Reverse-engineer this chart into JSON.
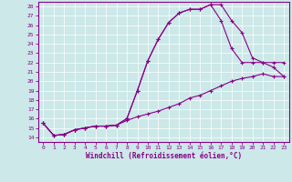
{
  "xlabel": "Windchill (Refroidissement éolien,°C)",
  "bg_color": "#cce8e8",
  "line_color": "#880088",
  "grid_color": "#aad0d0",
  "xlim": [
    -0.5,
    23.5
  ],
  "ylim": [
    13.5,
    28.5
  ],
  "yticks": [
    14,
    15,
    16,
    17,
    18,
    19,
    20,
    21,
    22,
    23,
    24,
    25,
    26,
    27,
    28
  ],
  "xticks": [
    0,
    1,
    2,
    3,
    4,
    5,
    6,
    7,
    8,
    9,
    10,
    11,
    12,
    13,
    14,
    15,
    16,
    17,
    18,
    19,
    20,
    21,
    22,
    23
  ],
  "line1_x": [
    0,
    1,
    2,
    3,
    4,
    5,
    6,
    7,
    8,
    9,
    10,
    11,
    12,
    13,
    14,
    15,
    16,
    17,
    18,
    19,
    20,
    21,
    22,
    23
  ],
  "line1_y": [
    15.5,
    14.2,
    14.3,
    14.8,
    15.0,
    15.2,
    15.2,
    15.3,
    16.0,
    19.0,
    22.2,
    24.5,
    26.3,
    27.3,
    27.7,
    27.7,
    28.2,
    28.2,
    26.5,
    25.2,
    22.5,
    22.0,
    21.5,
    20.5
  ],
  "line2_x": [
    0,
    1,
    2,
    3,
    4,
    5,
    6,
    7,
    8,
    9,
    10,
    11,
    12,
    13,
    14,
    15,
    16,
    17,
    18,
    19,
    20,
    21,
    22,
    23
  ],
  "line2_y": [
    15.5,
    14.2,
    14.3,
    14.8,
    15.0,
    15.2,
    15.2,
    15.3,
    16.0,
    19.0,
    22.2,
    24.5,
    26.3,
    27.3,
    27.7,
    27.7,
    28.2,
    26.5,
    23.5,
    22.0,
    22.0,
    22.0,
    22.0,
    22.0
  ],
  "line3_x": [
    0,
    1,
    2,
    3,
    4,
    5,
    6,
    7,
    8,
    9,
    10,
    11,
    12,
    13,
    14,
    15,
    16,
    17,
    18,
    19,
    20,
    21,
    22,
    23
  ],
  "line3_y": [
    15.5,
    14.2,
    14.3,
    14.8,
    15.0,
    15.2,
    15.2,
    15.3,
    15.8,
    16.2,
    16.5,
    16.8,
    17.2,
    17.6,
    18.2,
    18.5,
    19.0,
    19.5,
    20.0,
    20.3,
    20.5,
    20.8,
    20.5,
    20.5
  ]
}
